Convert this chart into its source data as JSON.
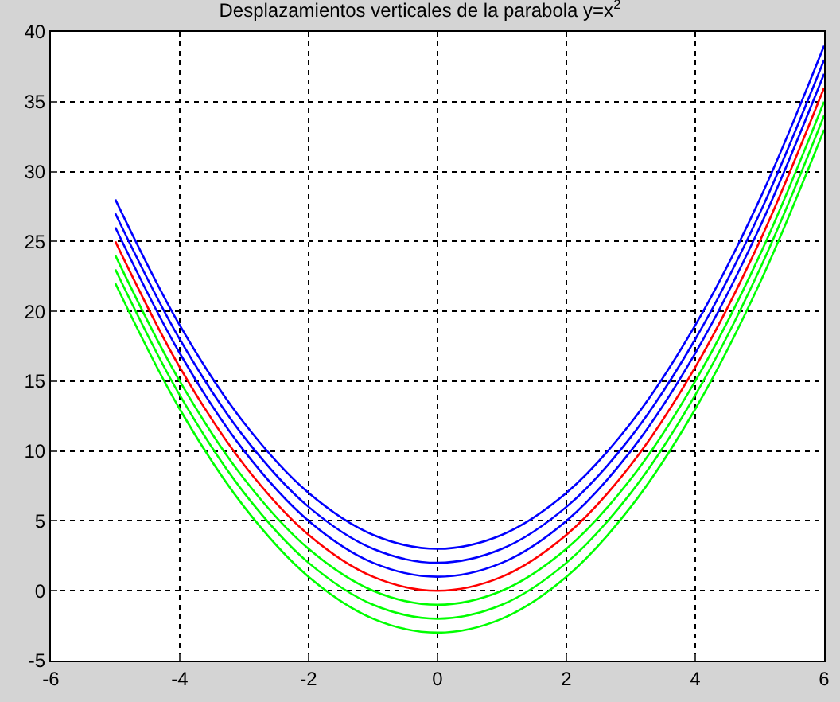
{
  "chart_data": {
    "type": "line",
    "title": "Desplazamientos verticales de la parabola y=x$^{2}$",
    "x": [
      -5,
      -4,
      -3,
      -2,
      -1,
      0,
      1,
      2,
      3,
      4,
      5,
      6
    ],
    "series": [
      {
        "color": "#0000ff",
        "values": [
          28,
          19,
          12,
          7,
          4,
          3,
          4,
          7,
          12,
          19,
          28,
          39
        ]
      },
      {
        "color": "#0000ff",
        "values": [
          27,
          18,
          11,
          6,
          3,
          2,
          3,
          6,
          11,
          18,
          27,
          38
        ]
      },
      {
        "color": "#0000ff",
        "values": [
          26,
          17,
          10,
          5,
          2,
          1,
          2,
          5,
          10,
          17,
          26,
          37
        ]
      },
      {
        "color": "#ff0000",
        "values": [
          25,
          16,
          9,
          4,
          1,
          0,
          1,
          4,
          9,
          16,
          25,
          36
        ]
      },
      {
        "color": "#00ff00",
        "values": [
          24,
          15,
          8,
          3,
          0,
          -1,
          0,
          3,
          8,
          15,
          24,
          35
        ]
      },
      {
        "color": "#00ff00",
        "values": [
          23,
          14,
          7,
          2,
          -1,
          -2,
          -1,
          2,
          7,
          14,
          23,
          34
        ]
      },
      {
        "color": "#00ff00",
        "values": [
          22,
          13,
          6,
          1,
          -2,
          -3,
          -2,
          1,
          6,
          13,
          22,
          33
        ]
      }
    ],
    "xlim": [
      -6,
      6
    ],
    "xticks": [
      -6,
      -4,
      -2,
      0,
      2,
      4,
      6
    ],
    "ylim": [
      -5,
      40
    ],
    "yticks": [
      -5,
      0,
      5,
      10,
      15,
      20,
      25,
      30,
      35,
      40
    ],
    "grid": true,
    "line_style": "solid",
    "marker": "none"
  }
}
